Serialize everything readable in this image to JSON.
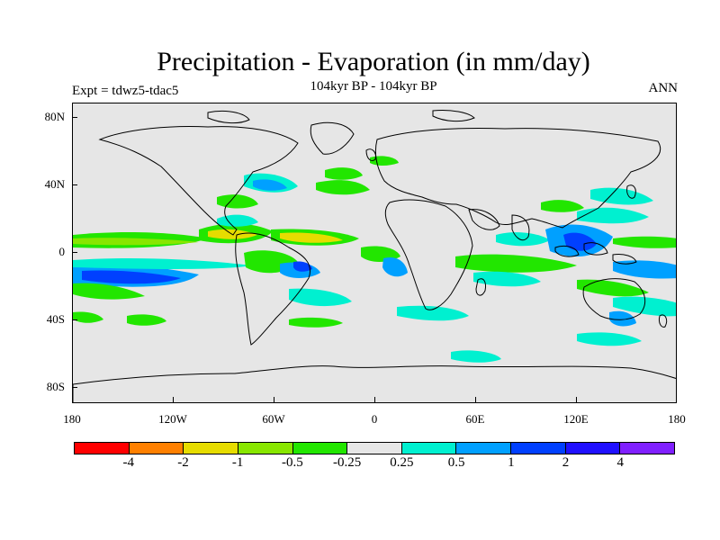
{
  "title": "Precipitation - Evaporation (in mm/day)",
  "subtitle": "104kyr BP - 104kyr BP",
  "experiment": "Expt = tdwz5-tdac5",
  "season": "ANN",
  "map": {
    "background_color": "#e6e6e6",
    "lat_labels": [
      "80N",
      "40N",
      "0",
      "40S",
      "80S"
    ],
    "lon_labels": [
      "180",
      "120W",
      "60W",
      "0",
      "60E",
      "120E",
      "180"
    ]
  },
  "colorbar": {
    "colors": [
      "#ff0000",
      "#ff8000",
      "#e6dc00",
      "#88e600",
      "#22e600",
      "#e6e6e6",
      "#00f0d0",
      "#00a0ff",
      "#0040ff",
      "#2010ff",
      "#8020ff"
    ],
    "labels": [
      "-4",
      "-2",
      "-1",
      "-0.5",
      "-0.25",
      "0.25",
      "0.5",
      "1",
      "2",
      "4"
    ]
  }
}
